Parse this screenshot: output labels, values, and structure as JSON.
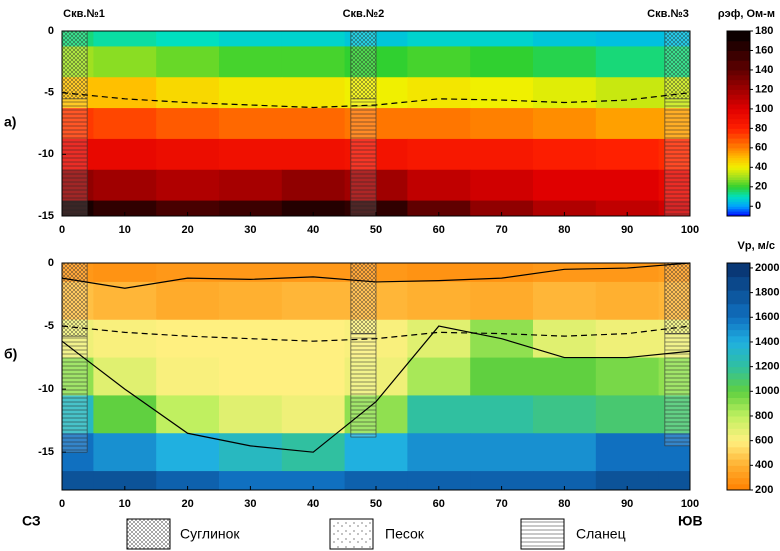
{
  "chart_data": [
    {
      "type": "heatmap",
      "panel_label": "а)",
      "x": [
        0,
        10,
        20,
        30,
        40,
        50,
        60,
        70,
        80,
        90,
        100
      ],
      "depths": [
        0,
        -2.5,
        -5,
        -7.5,
        -10,
        -12.5,
        -15
      ],
      "values": [
        [
          15,
          12,
          10,
          8,
          8,
          6,
          8,
          8,
          6,
          5,
          5
        ],
        [
          30,
          28,
          25,
          22,
          22,
          20,
          22,
          20,
          18,
          15,
          15
        ],
        [
          50,
          50,
          45,
          42,
          42,
          40,
          42,
          40,
          38,
          35,
          35
        ],
        [
          75,
          72,
          68,
          65,
          65,
          62,
          62,
          60,
          58,
          55,
          55
        ],
        [
          95,
          95,
          92,
          90,
          90,
          88,
          85,
          85,
          82,
          80,
          78
        ],
        [
          125,
          120,
          115,
          118,
          125,
          120,
          110,
          105,
          100,
          100,
          95
        ],
        [
          170,
          160,
          150,
          155,
          165,
          160,
          140,
          125,
          115,
          110,
          105
        ]
      ],
      "xlim": [
        0,
        100
      ],
      "xticks": [
        0,
        10,
        20,
        30,
        40,
        50,
        60,
        70,
        80,
        90,
        100
      ],
      "ylim": [
        -15,
        0
      ],
      "yticks": [
        0,
        -5,
        -10,
        -15
      ],
      "series": [
        {
          "style": "dashed",
          "color": "#000000",
          "values": [
            -5,
            -5.5,
            -5.8,
            -6,
            -6.2,
            -6,
            -5.5,
            -5.6,
            -5.8,
            -5.6,
            -5
          ]
        }
      ],
      "wells": [
        {
          "label": "Скв.№1",
          "xlim": [
            0,
            4
          ],
          "contact": -5.5,
          "bottom": -15
        },
        {
          "label": "Скв.№2",
          "xlim": [
            46,
            50
          ],
          "contact": -5.5,
          "bottom": -15
        },
        {
          "label": "Скв.№3",
          "xlim": [
            96,
            100
          ],
          "contact": -5.5,
          "bottom": -15
        }
      ],
      "colorbar": {
        "label": "ρэф, Ом-м",
        "lim": [
          -10,
          180
        ],
        "ticks": [
          180,
          160,
          140,
          120,
          100,
          80,
          60,
          40,
          20,
          0
        ],
        "stops": [
          [
            -10,
            "#0000ff"
          ],
          [
            0,
            "#00a0ff"
          ],
          [
            10,
            "#00e0c0"
          ],
          [
            20,
            "#30d030"
          ],
          [
            30,
            "#a0e020"
          ],
          [
            40,
            "#f0f000"
          ],
          [
            50,
            "#ffc000"
          ],
          [
            60,
            "#ff8000"
          ],
          [
            80,
            "#ff2000"
          ],
          [
            100,
            "#e00000"
          ],
          [
            120,
            "#a00000"
          ],
          [
            140,
            "#600000"
          ],
          [
            180,
            "#000000"
          ]
        ]
      }
    },
    {
      "type": "heatmap",
      "panel_label": "б)",
      "x": [
        0,
        10,
        20,
        30,
        40,
        50,
        60,
        70,
        80,
        90,
        100
      ],
      "depths": [
        0,
        -3,
        -6,
        -9,
        -12,
        -15,
        -18
      ],
      "values": [
        [
          300,
          280,
          300,
          300,
          300,
          300,
          280,
          280,
          300,
          300,
          320
        ],
        [
          450,
          420,
          380,
          400,
          420,
          420,
          400,
          380,
          420,
          400,
          420
        ],
        [
          650,
          620,
          600,
          600,
          600,
          620,
          700,
          900,
          700,
          650,
          650
        ],
        [
          900,
          700,
          620,
          600,
          600,
          650,
          850,
          1000,
          1000,
          950,
          900
        ],
        [
          1300,
          1000,
          800,
          700,
          650,
          900,
          1200,
          1200,
          1150,
          1100,
          1100
        ],
        [
          1600,
          1500,
          1400,
          1300,
          1200,
          1400,
          1500,
          1500,
          1500,
          1600,
          1600
        ],
        [
          1800,
          1800,
          1700,
          1600,
          1600,
          1700,
          1700,
          1700,
          1700,
          1800,
          1800
        ]
      ],
      "xlim": [
        0,
        100
      ],
      "xticks": [
        0,
        10,
        20,
        30,
        40,
        50,
        60,
        70,
        80,
        90,
        100
      ],
      "ylim": [
        -18,
        0
      ],
      "yticks": [
        0,
        -5,
        -10,
        -15
      ],
      "series": [
        {
          "style": "dashed",
          "color": "#000000",
          "values": [
            -5,
            -5.5,
            -5.8,
            -6,
            -6.2,
            -6,
            -5.5,
            -5.6,
            -5.8,
            -5.6,
            -5
          ]
        },
        {
          "style": "solid",
          "color": "#000000",
          "values": [
            -1.2,
            -2,
            -1.2,
            -1.3,
            -1.1,
            -1.5,
            -1.4,
            -1.2,
            -0.5,
            -0.4,
            0
          ]
        },
        {
          "style": "solid",
          "color": "#000000",
          "values": [
            -6.2,
            -10,
            -13.5,
            -14.5,
            -15,
            -11,
            -5,
            -6,
            -7.5,
            -7.5,
            -7
          ]
        }
      ],
      "wells": [
        {
          "xlim": [
            0,
            4
          ],
          "contact": -5.8,
          "bottom": -15
        },
        {
          "xlim": [
            46,
            50
          ],
          "contact": -5.6,
          "bottom": -13.8
        },
        {
          "xlim": [
            96,
            100
          ],
          "contact": -5.6,
          "bottom": -14.5
        }
      ],
      "colorbar": {
        "label": "Vp, м/с",
        "lim": [
          200,
          2040
        ],
        "ticks": [
          2000,
          1800,
          1600,
          1400,
          1200,
          1000,
          800,
          600,
          400,
          200
        ],
        "stops": [
          [
            200,
            "#ff8000"
          ],
          [
            400,
            "#ffb030"
          ],
          [
            600,
            "#fff080"
          ],
          [
            800,
            "#c0f060"
          ],
          [
            1000,
            "#60d040"
          ],
          [
            1200,
            "#30c0a0"
          ],
          [
            1400,
            "#20b0e0"
          ],
          [
            1600,
            "#1070c0"
          ],
          [
            2040,
            "#08306b"
          ]
        ]
      }
    }
  ],
  "directions": [
    "СЗ",
    "ЮВ"
  ],
  "legend": [
    "Суглинок",
    "Песок",
    "Сланец"
  ]
}
